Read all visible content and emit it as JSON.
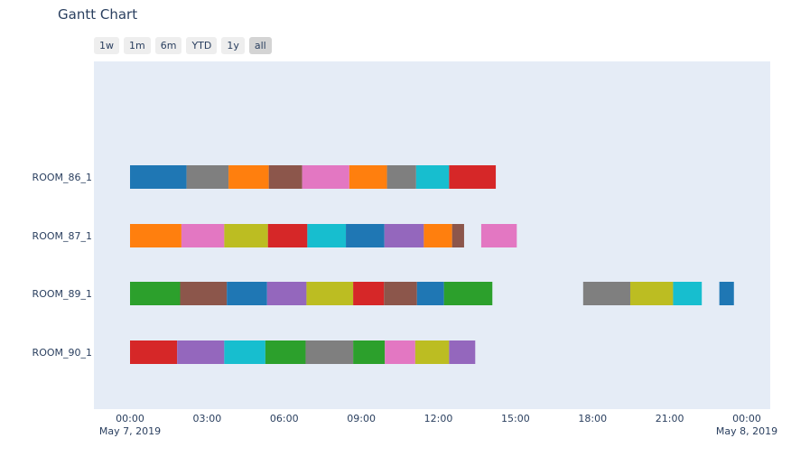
{
  "title": "Gantt Chart",
  "range_buttons": [
    {
      "label": "1w",
      "active": false
    },
    {
      "label": "1m",
      "active": false
    },
    {
      "label": "6m",
      "active": false
    },
    {
      "label": "YTD",
      "active": false
    },
    {
      "label": "1y",
      "active": false
    },
    {
      "label": "all",
      "active": true
    }
  ],
  "chart_data": {
    "type": "gantt",
    "title": "Gantt Chart",
    "x_range": [
      "2019-05-07 00:00",
      "2019-05-08 00:30"
    ],
    "x_ticks": [
      {
        "value": "2019-05-07 00:00",
        "label": "00:00",
        "sublabel": "May 7, 2019"
      },
      {
        "value": "2019-05-07 03:00",
        "label": "03:00",
        "sublabel": ""
      },
      {
        "value": "2019-05-07 06:00",
        "label": "06:00",
        "sublabel": ""
      },
      {
        "value": "2019-05-07 09:00",
        "label": "09:00",
        "sublabel": ""
      },
      {
        "value": "2019-05-07 12:00",
        "label": "12:00",
        "sublabel": ""
      },
      {
        "value": "2019-05-07 15:00",
        "label": "15:00",
        "sublabel": ""
      },
      {
        "value": "2019-05-07 18:00",
        "label": "18:00",
        "sublabel": ""
      },
      {
        "value": "2019-05-07 21:00",
        "label": "21:00",
        "sublabel": ""
      },
      {
        "value": "2019-05-08 00:00",
        "label": "00:00",
        "sublabel": "May 8, 2019"
      }
    ],
    "categories": [
      "ROOM_86_1",
      "ROOM_87_1",
      "ROOM_89_1",
      "ROOM_90_1"
    ],
    "colors": {
      "blue": "#1f77b4",
      "orange": "#ff7f0e",
      "green": "#2ca02c",
      "red": "#d62728",
      "purple": "#9467bd",
      "brown": "#8c564b",
      "pink": "#e377c2",
      "gray": "#7f7f7f",
      "olive": "#bcbd22",
      "cyan": "#17becf"
    },
    "tasks": [
      {
        "room": "ROOM_86_1",
        "start": "2019-05-07 00:00",
        "end": "2019-05-07 02:12",
        "color": "blue"
      },
      {
        "room": "ROOM_86_1",
        "start": "2019-05-07 02:12",
        "end": "2019-05-07 03:50",
        "color": "gray"
      },
      {
        "room": "ROOM_86_1",
        "start": "2019-05-07 03:50",
        "end": "2019-05-07 05:24",
        "color": "orange"
      },
      {
        "room": "ROOM_86_1",
        "start": "2019-05-07 05:24",
        "end": "2019-05-07 06:42",
        "color": "brown"
      },
      {
        "room": "ROOM_86_1",
        "start": "2019-05-07 06:42",
        "end": "2019-05-07 08:32",
        "color": "pink"
      },
      {
        "room": "ROOM_86_1",
        "start": "2019-05-07 08:32",
        "end": "2019-05-07 10:00",
        "color": "orange"
      },
      {
        "room": "ROOM_86_1",
        "start": "2019-05-07 10:00",
        "end": "2019-05-07 11:08",
        "color": "gray"
      },
      {
        "room": "ROOM_86_1",
        "start": "2019-05-07 11:08",
        "end": "2019-05-07 12:25",
        "color": "cyan"
      },
      {
        "room": "ROOM_86_1",
        "start": "2019-05-07 12:25",
        "end": "2019-05-07 14:14",
        "color": "red"
      },
      {
        "room": "ROOM_87_1",
        "start": "2019-05-07 00:00",
        "end": "2019-05-07 02:00",
        "color": "orange"
      },
      {
        "room": "ROOM_87_1",
        "start": "2019-05-07 02:00",
        "end": "2019-05-07 03:40",
        "color": "pink"
      },
      {
        "room": "ROOM_87_1",
        "start": "2019-05-07 03:40",
        "end": "2019-05-07 05:22",
        "color": "olive"
      },
      {
        "room": "ROOM_87_1",
        "start": "2019-05-07 05:22",
        "end": "2019-05-07 06:54",
        "color": "red"
      },
      {
        "room": "ROOM_87_1",
        "start": "2019-05-07 06:54",
        "end": "2019-05-07 08:24",
        "color": "cyan"
      },
      {
        "room": "ROOM_87_1",
        "start": "2019-05-07 08:24",
        "end": "2019-05-07 09:54",
        "color": "blue"
      },
      {
        "room": "ROOM_87_1",
        "start": "2019-05-07 09:54",
        "end": "2019-05-07 11:26",
        "color": "purple"
      },
      {
        "room": "ROOM_87_1",
        "start": "2019-05-07 11:26",
        "end": "2019-05-07 12:32",
        "color": "orange"
      },
      {
        "room": "ROOM_87_1",
        "start": "2019-05-07 12:32",
        "end": "2019-05-07 13:00",
        "color": "brown"
      },
      {
        "room": "ROOM_87_1",
        "start": "2019-05-07 13:40",
        "end": "2019-05-07 15:03",
        "color": "pink"
      },
      {
        "room": "ROOM_89_1",
        "start": "2019-05-07 00:00",
        "end": "2019-05-07 01:57",
        "color": "green"
      },
      {
        "room": "ROOM_89_1",
        "start": "2019-05-07 01:57",
        "end": "2019-05-07 03:46",
        "color": "brown"
      },
      {
        "room": "ROOM_89_1",
        "start": "2019-05-07 03:46",
        "end": "2019-05-07 05:20",
        "color": "blue"
      },
      {
        "room": "ROOM_89_1",
        "start": "2019-05-07 05:20",
        "end": "2019-05-07 06:52",
        "color": "purple"
      },
      {
        "room": "ROOM_89_1",
        "start": "2019-05-07 06:52",
        "end": "2019-05-07 08:41",
        "color": "olive"
      },
      {
        "room": "ROOM_89_1",
        "start": "2019-05-07 08:41",
        "end": "2019-05-07 09:53",
        "color": "red"
      },
      {
        "room": "ROOM_89_1",
        "start": "2019-05-07 09:53",
        "end": "2019-05-07 11:10",
        "color": "brown"
      },
      {
        "room": "ROOM_89_1",
        "start": "2019-05-07 11:10",
        "end": "2019-05-07 12:13",
        "color": "blue"
      },
      {
        "room": "ROOM_89_1",
        "start": "2019-05-07 12:13",
        "end": "2019-05-07 14:06",
        "color": "green"
      },
      {
        "room": "ROOM_89_1",
        "start": "2019-05-07 17:38",
        "end": "2019-05-07 19:28",
        "color": "gray"
      },
      {
        "room": "ROOM_89_1",
        "start": "2019-05-07 19:28",
        "end": "2019-05-07 21:08",
        "color": "olive"
      },
      {
        "room": "ROOM_89_1",
        "start": "2019-05-07 21:08",
        "end": "2019-05-07 22:15",
        "color": "cyan"
      },
      {
        "room": "ROOM_89_1",
        "start": "2019-05-07 22:56",
        "end": "2019-05-07 23:30",
        "color": "blue"
      },
      {
        "room": "ROOM_90_1",
        "start": "2019-05-07 00:00",
        "end": "2019-05-07 01:50",
        "color": "red"
      },
      {
        "room": "ROOM_90_1",
        "start": "2019-05-07 01:50",
        "end": "2019-05-07 03:40",
        "color": "purple"
      },
      {
        "room": "ROOM_90_1",
        "start": "2019-05-07 03:40",
        "end": "2019-05-07 05:16",
        "color": "cyan"
      },
      {
        "room": "ROOM_90_1",
        "start": "2019-05-07 05:16",
        "end": "2019-05-07 06:50",
        "color": "green"
      },
      {
        "room": "ROOM_90_1",
        "start": "2019-05-07 06:50",
        "end": "2019-05-07 08:41",
        "color": "gray"
      },
      {
        "room": "ROOM_90_1",
        "start": "2019-05-07 08:41",
        "end": "2019-05-07 09:55",
        "color": "green"
      },
      {
        "room": "ROOM_90_1",
        "start": "2019-05-07 09:55",
        "end": "2019-05-07 11:06",
        "color": "pink"
      },
      {
        "room": "ROOM_90_1",
        "start": "2019-05-07 11:06",
        "end": "2019-05-07 12:25",
        "color": "olive"
      },
      {
        "room": "ROOM_90_1",
        "start": "2019-05-07 12:25",
        "end": "2019-05-07 13:26",
        "color": "purple"
      }
    ],
    "plot_bg": "#e5ecf6",
    "grid": false,
    "legend": "none"
  }
}
